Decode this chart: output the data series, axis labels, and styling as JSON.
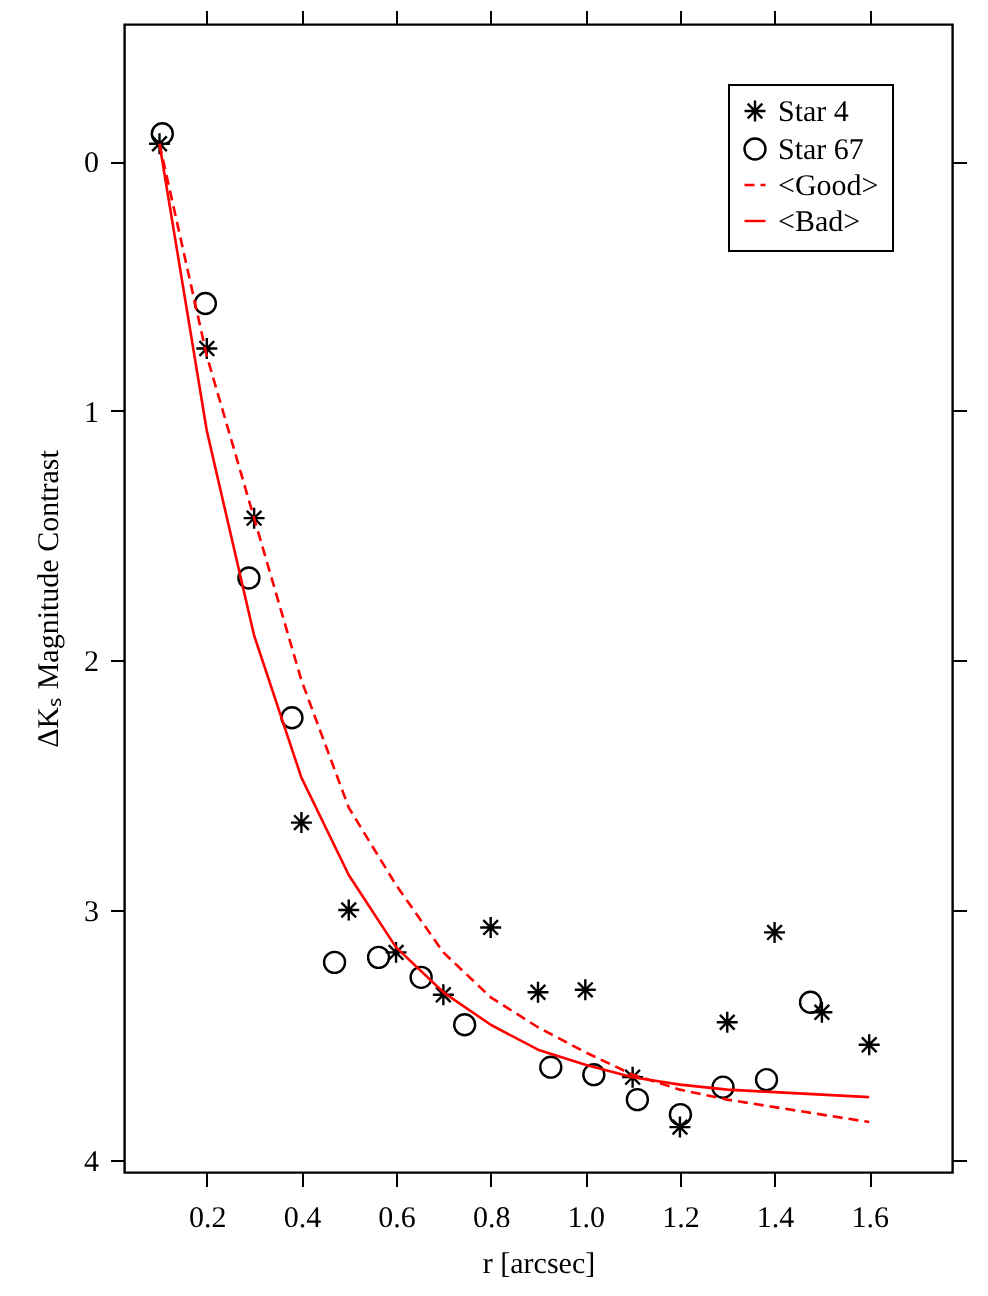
{
  "chart_data": {
    "type": "scatter",
    "xlabel": "r [arcsec]",
    "ylabel": "ΔKₛ Magnitude Contrast",
    "xlim": [
      0.025,
      1.775
    ],
    "ylim": [
      4.05,
      -0.55
    ],
    "xticks": [
      0.2,
      0.4,
      0.6,
      0.8,
      {
        "value": 1,
        "label": "1.0"
      },
      1.2,
      1.4,
      1.6
    ],
    "yticks": [
      0,
      1,
      2,
      3,
      4
    ],
    "grid": false,
    "legend": "top right",
    "series": [
      {
        "name": "Star 4",
        "marker": "cross",
        "color": "#000000",
        "x": [
          0.1,
          0.2,
          0.3,
          0.4,
          0.5,
          0.6,
          0.7,
          0.8,
          0.9,
          1.0,
          1.1,
          1.2,
          1.3,
          1.4,
          1.5,
          1.6
        ],
        "values": [
          -0.07,
          0.75,
          1.43,
          2.65,
          3.0,
          3.17,
          3.34,
          3.07,
          3.33,
          3.32,
          3.67,
          3.87,
          3.45,
          3.09,
          3.41,
          3.54
        ]
      },
      {
        "name": "Star 67",
        "marker": "circle",
        "color": "#000000",
        "x": [
          0.106,
          0.197,
          0.289,
          0.38,
          0.47,
          0.563,
          0.653,
          0.745,
          0.927,
          1.018,
          1.11,
          1.201,
          1.291,
          1.383,
          1.476
        ],
        "values": [
          -0.11,
          0.57,
          1.67,
          2.23,
          3.21,
          3.19,
          3.27,
          3.46,
          3.63,
          3.66,
          3.76,
          3.82,
          3.71,
          3.68,
          3.37
        ]
      },
      {
        "name": "<Good>",
        "type": "line",
        "line_style": "dashed",
        "color": "#ff0000",
        "x": [
          0.1,
          0.2,
          0.3,
          0.4,
          0.5,
          0.6,
          0.7,
          0.8,
          0.9,
          1.0,
          1.1,
          1.2,
          1.3,
          1.4,
          1.5,
          1.6
        ],
        "values": [
          -0.07,
          0.78,
          1.43,
          2.08,
          2.59,
          2.9,
          3.17,
          3.35,
          3.47,
          3.57,
          3.66,
          3.72,
          3.76,
          3.79,
          3.82,
          3.85
        ]
      },
      {
        "name": "<Bad>",
        "type": "line",
        "line_style": "solid",
        "color": "#ff0000",
        "x": [
          0.1,
          0.2,
          0.3,
          0.4,
          0.5,
          0.6,
          0.7,
          0.8,
          0.9,
          1.0,
          1.1,
          1.2,
          1.3,
          1.4,
          1.5,
          1.6
        ],
        "values": [
          -0.07,
          1.08,
          1.9,
          2.47,
          2.86,
          3.15,
          3.33,
          3.46,
          3.56,
          3.62,
          3.67,
          3.7,
          3.72,
          3.73,
          3.74,
          3.75
        ]
      }
    ]
  }
}
